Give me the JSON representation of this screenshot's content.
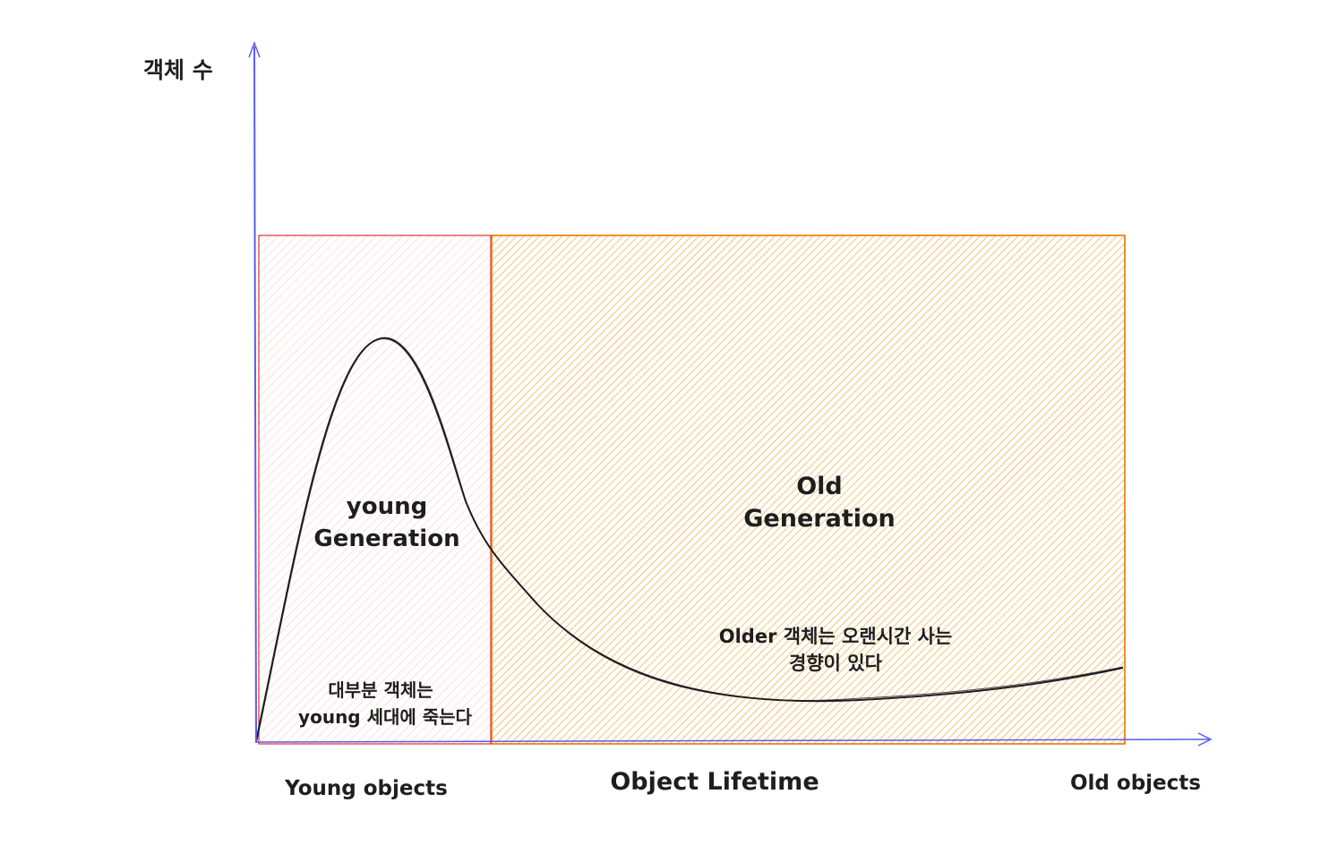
{
  "axes": {
    "y_label": "객체 수",
    "x_label": "Object Lifetime",
    "x_left_label": "Young objects",
    "x_right_label": "Old objects",
    "axis_color": "#5b5bf0"
  },
  "regions": {
    "young": {
      "title_line1": "young",
      "title_line2": "Generation",
      "note_line1": "대부분 객체는",
      "note_line2": "young 세대에 죽는다",
      "stroke_color": "#e03131",
      "hatch_color": "#ffc9c9"
    },
    "old": {
      "title_line1": "Old",
      "title_line2": "Generation",
      "note_line1": "Older 객체는 오랜시간 사는",
      "note_line2": "경향이 있다",
      "stroke_color": "#e67700",
      "hatch_color": "#f5b041"
    }
  },
  "curve": {
    "description_color": "#1e1e1e"
  }
}
